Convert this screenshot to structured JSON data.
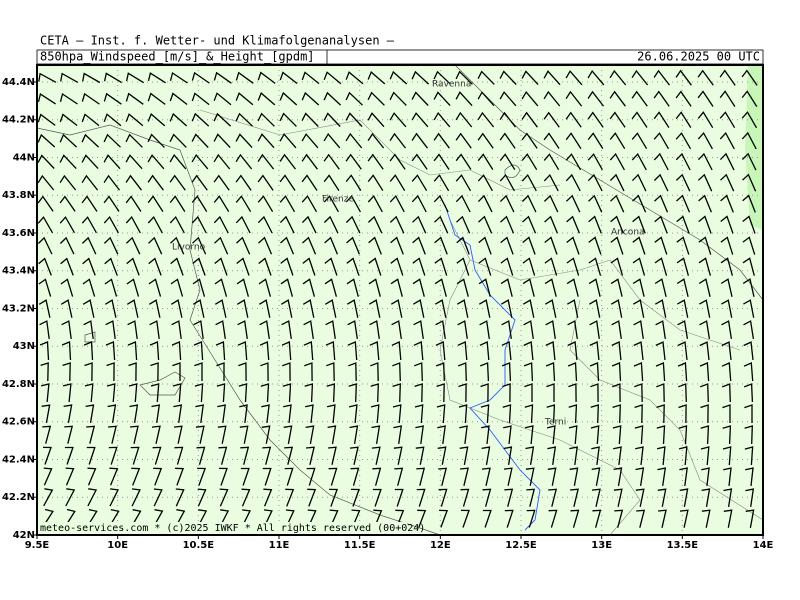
{
  "header": {
    "title": "CETA — Inst. f. Wetter- und Klimafolgenanalysen —",
    "product": "850hpa_Windspeed_[m/s]_&_Height_[gpdm]",
    "date": "26.06.2025 00 UTC"
  },
  "map": {
    "lon_range": [
      9.5,
      14
    ],
    "lat_range": [
      42,
      44.49
    ],
    "lon_ticks": [
      {
        "value": 9.5,
        "label": "9.5E"
      },
      {
        "value": 10,
        "label": "10E"
      },
      {
        "value": 10.5,
        "label": "10.5E"
      },
      {
        "value": 11,
        "label": "11E"
      },
      {
        "value": 11.5,
        "label": "11.5E"
      },
      {
        "value": 12,
        "label": "12E"
      },
      {
        "value": 12.5,
        "label": "12.5E"
      },
      {
        "value": 13,
        "label": "13E"
      },
      {
        "value": 13.5,
        "label": "13.5E"
      },
      {
        "value": 14,
        "label": "14E"
      }
    ],
    "lat_ticks": [
      {
        "value": 42,
        "label": "42N"
      },
      {
        "value": 42.2,
        "label": "42.2N"
      },
      {
        "value": 42.4,
        "label": "42.4N"
      },
      {
        "value": 42.6,
        "label": "42.6N"
      },
      {
        "value": 42.8,
        "label": "42.8N"
      },
      {
        "value": 43,
        "label": "43N"
      },
      {
        "value": 43.2,
        "label": "43.2N"
      },
      {
        "value": 43.4,
        "label": "43.4N"
      },
      {
        "value": 43.6,
        "label": "43.6N"
      },
      {
        "value": 43.8,
        "label": "43.8N"
      },
      {
        "value": 44,
        "label": "44N"
      },
      {
        "value": 44.2,
        "label": "44.2N"
      },
      {
        "value": 44.4,
        "label": "44.4N"
      }
    ],
    "cities": [
      "Ravenna",
      "Firenze",
      "Livorno",
      "Ancona",
      "Terni"
    ]
  },
  "footer": "meteo-services.com * (c)2025 IWKF * All rights reserved (00+024)"
}
